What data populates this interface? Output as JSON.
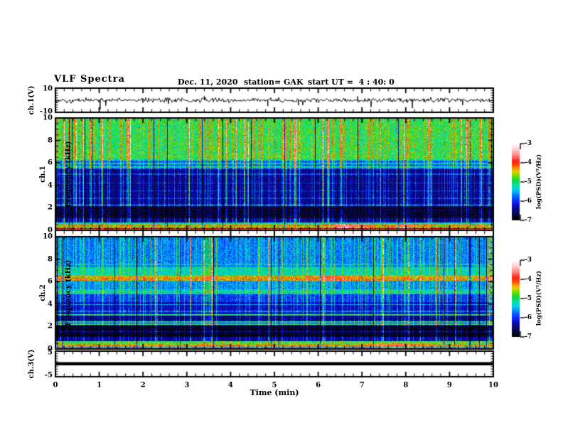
{
  "page": {
    "background": "#ffffff",
    "foreground": "#000000"
  },
  "header": {
    "title": "VLF Spectra",
    "date": "Dec. 11, 2020",
    "station": "station= GAK",
    "start_ut": "start UT =  4 : 40: 0"
  },
  "axes": {
    "time": {
      "label": "Time (min)",
      "ticks": [
        0,
        1,
        2,
        3,
        4,
        5,
        6,
        7,
        8,
        9,
        10
      ],
      "minor_step_min": 0.2,
      "range": [
        0,
        10
      ]
    },
    "ch1v": {
      "label": "ch.1(V)",
      "tick_top": "10",
      "tick_bottom": "-10",
      "range": [
        -10,
        10
      ]
    },
    "freq1": {
      "label_line1": "ch.1",
      "label_line2": "Frequency (kHz)",
      "ticks": [
        10,
        8,
        6,
        4,
        2,
        0
      ],
      "minor_step_khz": 0.5,
      "range": [
        0,
        10
      ]
    },
    "freq2": {
      "label_line1": "ch.2",
      "label_line2": "Frequency (kHz)",
      "ticks": [
        10,
        8,
        6,
        4,
        2,
        0
      ],
      "minor_step_khz": 0.5,
      "range": [
        0,
        10
      ]
    },
    "ch3v": {
      "label": "ch.3(V)",
      "tick_top": "5",
      "tick_bottom": "-5",
      "range": [
        -5,
        5
      ]
    }
  },
  "colorbar": {
    "label": "log(PSD)(V²/Hz)",
    "ticks": [
      -3,
      -4,
      -5,
      -6,
      -7
    ],
    "range": [
      -7,
      -3
    ],
    "gradient": [
      {
        "p": 0.0,
        "color": "#000000"
      },
      {
        "p": 0.08,
        "color": "#080846"
      },
      {
        "p": 0.18,
        "color": "#0a0ab4"
      },
      {
        "p": 0.25,
        "color": "#1428ff"
      },
      {
        "p": 0.33,
        "color": "#0082ff"
      },
      {
        "p": 0.4,
        "color": "#00d2e6"
      },
      {
        "p": 0.46,
        "color": "#00e1a0"
      },
      {
        "p": 0.52,
        "color": "#14d73c"
      },
      {
        "p": 0.58,
        "color": "#6edc00"
      },
      {
        "p": 0.63,
        "color": "#d2d700"
      },
      {
        "p": 0.67,
        "color": "#ffa000"
      },
      {
        "p": 0.72,
        "color": "#ff500a"
      },
      {
        "p": 0.77,
        "color": "#ff1e14"
      },
      {
        "p": 0.85,
        "color": "#ff8282"
      },
      {
        "p": 0.93,
        "color": "#ffd0d0"
      },
      {
        "p": 1.0,
        "color": "#ffffff"
      }
    ]
  },
  "chart_data": [
    {
      "type": "line",
      "name": "ch1_waveform",
      "ylabel": "ch.1(V)",
      "xlabel": "Time (min)",
      "ylim": [
        -10,
        10
      ],
      "xlim": [
        0,
        10
      ],
      "baseline_v": 0,
      "noise_sigma_v": 0.9,
      "spikes": [
        {
          "t_min": 1.02,
          "v": -7.5
        },
        {
          "t_min": 1.15,
          "v": -4.5
        },
        {
          "t_min": 3.4,
          "v": 3.6
        },
        {
          "t_min": 4.85,
          "v": -4.8
        },
        {
          "t_min": 5.55,
          "v": -4.2
        },
        {
          "t_min": 6.9,
          "v": 3.2
        },
        {
          "t_min": 8.15,
          "v": -6.5
        },
        {
          "t_min": 9.3,
          "v": -4.0
        }
      ]
    },
    {
      "type": "heatmap",
      "name": "ch1_spectrogram",
      "ylabel": "ch.1 Frequency (kHz)",
      "xlim": [
        0,
        10
      ],
      "ylim": [
        0,
        10
      ],
      "zlim": [
        -7,
        -3
      ],
      "zlabel": "log(PSD)(V²/Hz)",
      "bands": [
        [
          0,
          0.12,
          -4.1
        ],
        [
          0.12,
          0.2,
          -6.3
        ],
        [
          0.2,
          0.32,
          -4.5
        ],
        [
          0.32,
          0.58,
          -4.7
        ],
        [
          0.58,
          0.72,
          -5.5
        ],
        [
          0.72,
          1.05,
          -6.6
        ],
        [
          1.05,
          2.15,
          -6.85
        ],
        [
          2.15,
          2.35,
          -6.2
        ],
        [
          2.35,
          5.45,
          -6.55
        ],
        [
          5.45,
          6.35,
          -5.95
        ],
        [
          6.35,
          10,
          -5.05
        ]
      ],
      "lines": [
        [
          0.05,
          -4.0,
          0.05
        ],
        [
          0.25,
          -4.3,
          0.05
        ],
        [
          0.45,
          -4.5,
          0.08
        ],
        [
          0.65,
          -5.3,
          0.05
        ],
        [
          2.2,
          -6.0,
          0.05
        ],
        [
          2.85,
          -6.25,
          0.05
        ],
        [
          3.5,
          -6.2,
          0.05
        ],
        [
          4.2,
          -6.25,
          0.05
        ],
        [
          5.0,
          -6.1,
          0.05
        ],
        [
          5.65,
          -5.35,
          0.06
        ],
        [
          5.95,
          -5.45,
          0.05
        ],
        [
          6.25,
          -5.25,
          0.06
        ],
        [
          6.6,
          -4.9,
          0.06
        ]
      ],
      "blobs": [
        {
          "t": 6.6,
          "f_lo": 0.2,
          "f_hi": 0.6,
          "boost": 0.9,
          "w": 0.3
        },
        {
          "t": 7.1,
          "f_lo": 0.2,
          "f_hi": 0.6,
          "boost": 0.5,
          "w": 0.2
        },
        {
          "t": 8.0,
          "f_lo": 0.2,
          "f_hi": 0.6,
          "boost": 0.7,
          "w": 0.35
        }
      ],
      "streaks": {
        "strong_prob": 0.035,
        "medium_prob": 0.3,
        "dark_prob": 0.02
      },
      "seed": 12345
    },
    {
      "type": "heatmap",
      "name": "ch2_spectrogram",
      "ylabel": "ch.2 Frequency (kHz)",
      "xlim": [
        0,
        10
      ],
      "ylim": [
        0,
        10
      ],
      "zlim": [
        -7,
        -3
      ],
      "zlabel": "log(PSD)(V²/Hz)",
      "bands": [
        [
          0,
          0.12,
          -4.4
        ],
        [
          0.12,
          0.22,
          -5.8
        ],
        [
          0.22,
          0.42,
          -4.6
        ],
        [
          0.42,
          0.7,
          -5.0
        ],
        [
          0.7,
          1.1,
          -6.5
        ],
        [
          1.1,
          2.1,
          -6.9
        ],
        [
          2.1,
          2.55,
          -6.3
        ],
        [
          2.55,
          3.0,
          -6.6
        ],
        [
          3.0,
          4.2,
          -6.35
        ],
        [
          4.2,
          4.85,
          -6.1
        ],
        [
          4.85,
          5.3,
          -5.45
        ],
        [
          5.3,
          6.05,
          -5.75
        ],
        [
          6.05,
          6.55,
          -4.55
        ],
        [
          6.55,
          7.3,
          -5.35
        ],
        [
          7.3,
          10,
          -5.8
        ]
      ],
      "lines": [
        [
          0.06,
          -4.2,
          0.05
        ],
        [
          0.33,
          -4.3,
          0.06
        ],
        [
          0.55,
          -4.8,
          0.07
        ],
        [
          1.55,
          -6.5,
          0.04
        ],
        [
          2.2,
          -5.15,
          0.05
        ],
        [
          2.42,
          -5.25,
          0.05
        ],
        [
          3.05,
          -5.2,
          0.05
        ],
        [
          3.35,
          -5.9,
          0.04
        ],
        [
          3.95,
          -5.7,
          0.05
        ],
        [
          5.05,
          -5.15,
          0.08
        ],
        [
          6.25,
          -4.35,
          0.1
        ],
        [
          6.55,
          -5.0,
          0.05
        ],
        [
          7.55,
          -5.55,
          0.05
        ],
        [
          8.2,
          -5.9,
          0.04
        ]
      ],
      "blobs": [
        {
          "t": 7.8,
          "f_lo": 0.0,
          "f_hi": 0.5,
          "boost": 0.5,
          "w": 0.5
        },
        {
          "t": 6.35,
          "f_lo": 6.0,
          "f_hi": 6.6,
          "boost": 0.4,
          "w": 0.4
        }
      ],
      "streaks": {
        "strong_prob": 0.03,
        "medium_prob": 0.26,
        "dark_prob": 0.02
      },
      "seed": 77701
    },
    {
      "type": "line",
      "name": "ch3_waveform",
      "ylabel": "ch.3(V)",
      "xlabel": "Time (min)",
      "ylim": [
        -5,
        5
      ],
      "xlim": [
        0,
        10
      ],
      "constant_v": 0
    }
  ]
}
